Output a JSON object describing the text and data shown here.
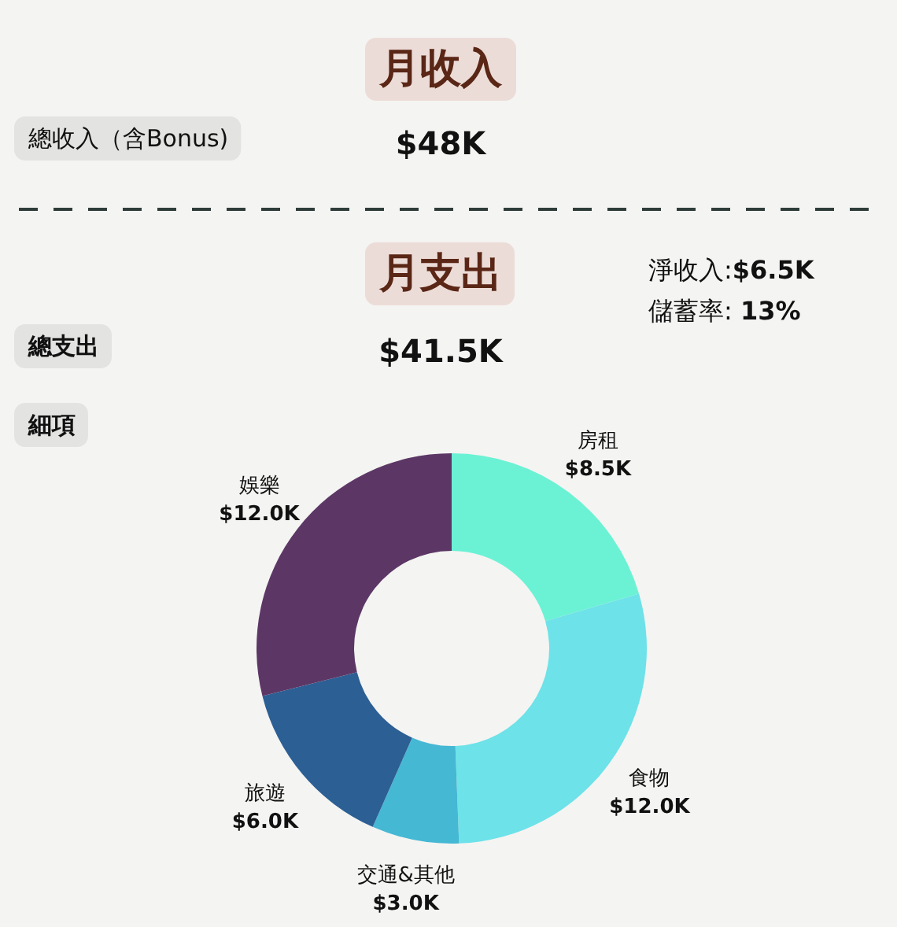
{
  "chart_data": [
    {
      "type": "other",
      "title": "月收入",
      "annotations": [
        "總收入（含Bonus)",
        "$48K"
      ]
    },
    {
      "type": "donut",
      "title": "月支出",
      "annotations": [
        "總支出",
        "$41.5K",
        "細項",
        "淨收入:**$6.5K**",
        "儲蓄率: **13%**"
      ],
      "categories": [
        "房租",
        "食物",
        "交通&其他",
        "旅遊",
        "娛樂"
      ],
      "values": [
        8.5,
        12.0,
        3.0,
        6.0,
        12.0
      ],
      "value_labels": [
        "$8.5K",
        "$12.0K",
        "$3.0K",
        "$6.0K",
        "$12.0K"
      ],
      "colors": [
        "#6bf2d4",
        "#6de2e8",
        "#45b8d4",
        "#2c5f94",
        "#5c3766"
      ]
    }
  ]
}
